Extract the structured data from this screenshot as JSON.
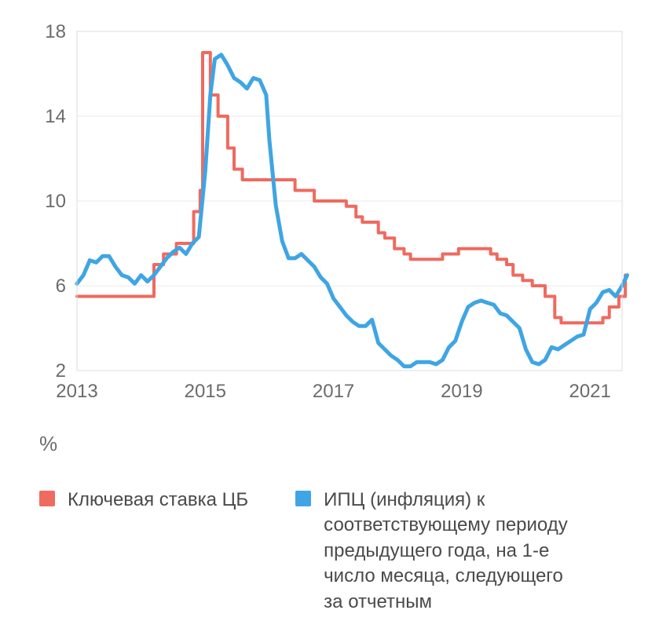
{
  "chart": {
    "type": "line",
    "background_color": "#ffffff",
    "plot_border_color": "#dcdcdc",
    "plot_border_width": 1,
    "grid_color": "#e9e9e9",
    "grid_width": 1,
    "axis_font_size": 24,
    "axis_font_color": "#6b6b6b",
    "xlim": [
      2013,
      2021.5
    ],
    "ylim": [
      2,
      18
    ],
    "yticks": [
      2,
      6,
      10,
      14,
      18
    ],
    "xticks": [
      2013,
      2015,
      2017,
      2019,
      2021
    ],
    "series": [
      {
        "id": "key_rate",
        "color": "#ef6a5f",
        "line_width": 4,
        "step": true,
        "points": [
          [
            2013.0,
            5.5
          ],
          [
            2013.7,
            5.5
          ],
          [
            2013.7,
            5.5
          ],
          [
            2014.2,
            5.5
          ],
          [
            2014.2,
            7.0
          ],
          [
            2014.35,
            7.0
          ],
          [
            2014.35,
            7.5
          ],
          [
            2014.55,
            7.5
          ],
          [
            2014.55,
            8.0
          ],
          [
            2014.82,
            8.0
          ],
          [
            2014.82,
            9.5
          ],
          [
            2014.92,
            9.5
          ],
          [
            2014.92,
            10.5
          ],
          [
            2014.96,
            10.5
          ],
          [
            2014.96,
            17.0
          ],
          [
            2015.08,
            17.0
          ],
          [
            2015.08,
            15.0
          ],
          [
            2015.2,
            15.0
          ],
          [
            2015.2,
            14.0
          ],
          [
            2015.35,
            14.0
          ],
          [
            2015.35,
            12.5
          ],
          [
            2015.45,
            12.5
          ],
          [
            2015.45,
            11.5
          ],
          [
            2015.58,
            11.5
          ],
          [
            2015.58,
            11.0
          ],
          [
            2016.4,
            11.0
          ],
          [
            2016.4,
            10.5
          ],
          [
            2016.7,
            10.5
          ],
          [
            2016.7,
            10.0
          ],
          [
            2017.2,
            10.0
          ],
          [
            2017.2,
            9.75
          ],
          [
            2017.35,
            9.75
          ],
          [
            2017.35,
            9.25
          ],
          [
            2017.45,
            9.25
          ],
          [
            2017.45,
            9.0
          ],
          [
            2017.7,
            9.0
          ],
          [
            2017.7,
            8.5
          ],
          [
            2017.8,
            8.5
          ],
          [
            2017.8,
            8.25
          ],
          [
            2017.95,
            8.25
          ],
          [
            2017.95,
            7.75
          ],
          [
            2018.1,
            7.75
          ],
          [
            2018.1,
            7.5
          ],
          [
            2018.2,
            7.5
          ],
          [
            2018.2,
            7.25
          ],
          [
            2018.7,
            7.25
          ],
          [
            2018.7,
            7.5
          ],
          [
            2018.95,
            7.5
          ],
          [
            2018.95,
            7.75
          ],
          [
            2019.45,
            7.75
          ],
          [
            2019.45,
            7.5
          ],
          [
            2019.55,
            7.5
          ],
          [
            2019.55,
            7.25
          ],
          [
            2019.7,
            7.25
          ],
          [
            2019.7,
            7.0
          ],
          [
            2019.8,
            7.0
          ],
          [
            2019.8,
            6.5
          ],
          [
            2019.95,
            6.5
          ],
          [
            2019.95,
            6.25
          ],
          [
            2020.1,
            6.25
          ],
          [
            2020.1,
            6.0
          ],
          [
            2020.3,
            6.0
          ],
          [
            2020.3,
            5.5
          ],
          [
            2020.45,
            5.5
          ],
          [
            2020.45,
            4.5
          ],
          [
            2020.55,
            4.5
          ],
          [
            2020.55,
            4.25
          ],
          [
            2021.2,
            4.25
          ],
          [
            2021.2,
            4.5
          ],
          [
            2021.3,
            4.5
          ],
          [
            2021.3,
            5.0
          ],
          [
            2021.45,
            5.0
          ],
          [
            2021.45,
            5.5
          ],
          [
            2021.55,
            5.5
          ],
          [
            2021.55,
            6.5
          ],
          [
            2021.58,
            6.5
          ]
        ]
      },
      {
        "id": "cpi",
        "color": "#3fa5e4",
        "line_width": 5,
        "step": false,
        "points": [
          [
            2013.0,
            6.1
          ],
          [
            2013.1,
            6.5
          ],
          [
            2013.2,
            7.2
          ],
          [
            2013.3,
            7.1
          ],
          [
            2013.4,
            7.4
          ],
          [
            2013.5,
            7.4
          ],
          [
            2013.6,
            6.9
          ],
          [
            2013.7,
            6.5
          ],
          [
            2013.8,
            6.4
          ],
          [
            2013.9,
            6.1
          ],
          [
            2014.0,
            6.5
          ],
          [
            2014.1,
            6.2
          ],
          [
            2014.2,
            6.5
          ],
          [
            2014.3,
            6.9
          ],
          [
            2014.4,
            7.3
          ],
          [
            2014.5,
            7.6
          ],
          [
            2014.6,
            7.8
          ],
          [
            2014.7,
            7.5
          ],
          [
            2014.8,
            8.0
          ],
          [
            2014.9,
            8.3
          ],
          [
            2015.0,
            11.4
          ],
          [
            2015.08,
            15.0
          ],
          [
            2015.15,
            16.7
          ],
          [
            2015.25,
            16.9
          ],
          [
            2015.35,
            16.4
          ],
          [
            2015.45,
            15.8
          ],
          [
            2015.55,
            15.6
          ],
          [
            2015.65,
            15.3
          ],
          [
            2015.75,
            15.8
          ],
          [
            2015.85,
            15.7
          ],
          [
            2015.95,
            15.0
          ],
          [
            2016.0,
            12.9
          ],
          [
            2016.1,
            9.8
          ],
          [
            2016.2,
            8.1
          ],
          [
            2016.3,
            7.3
          ],
          [
            2016.4,
            7.3
          ],
          [
            2016.5,
            7.5
          ],
          [
            2016.6,
            7.2
          ],
          [
            2016.7,
            6.9
          ],
          [
            2016.8,
            6.4
          ],
          [
            2016.9,
            6.1
          ],
          [
            2017.0,
            5.4
          ],
          [
            2017.1,
            5.0
          ],
          [
            2017.2,
            4.6
          ],
          [
            2017.3,
            4.3
          ],
          [
            2017.4,
            4.1
          ],
          [
            2017.5,
            4.1
          ],
          [
            2017.6,
            4.4
          ],
          [
            2017.7,
            3.3
          ],
          [
            2017.8,
            3.0
          ],
          [
            2017.9,
            2.7
          ],
          [
            2018.0,
            2.5
          ],
          [
            2018.1,
            2.2
          ],
          [
            2018.2,
            2.2
          ],
          [
            2018.3,
            2.4
          ],
          [
            2018.4,
            2.4
          ],
          [
            2018.5,
            2.4
          ],
          [
            2018.6,
            2.3
          ],
          [
            2018.7,
            2.5
          ],
          [
            2018.8,
            3.1
          ],
          [
            2018.9,
            3.4
          ],
          [
            2019.0,
            4.3
          ],
          [
            2019.1,
            5.0
          ],
          [
            2019.2,
            5.2
          ],
          [
            2019.3,
            5.3
          ],
          [
            2019.4,
            5.2
          ],
          [
            2019.5,
            5.1
          ],
          [
            2019.6,
            4.7
          ],
          [
            2019.7,
            4.6
          ],
          [
            2019.8,
            4.3
          ],
          [
            2019.9,
            4.0
          ],
          [
            2020.0,
            3.0
          ],
          [
            2020.1,
            2.4
          ],
          [
            2020.2,
            2.3
          ],
          [
            2020.3,
            2.5
          ],
          [
            2020.4,
            3.1
          ],
          [
            2020.5,
            3.0
          ],
          [
            2020.6,
            3.2
          ],
          [
            2020.7,
            3.4
          ],
          [
            2020.8,
            3.6
          ],
          [
            2020.9,
            3.7
          ],
          [
            2021.0,
            4.9
          ],
          [
            2021.1,
            5.2
          ],
          [
            2021.2,
            5.7
          ],
          [
            2021.3,
            5.8
          ],
          [
            2021.4,
            5.5
          ],
          [
            2021.5,
            6.0
          ],
          [
            2021.58,
            6.5
          ]
        ]
      }
    ]
  },
  "unit_label": "%",
  "legend": {
    "items": [
      {
        "id": "key_rate",
        "swatch_color": "#ef6a5f",
        "label": "Ключевая ставка ЦБ"
      },
      {
        "id": "cpi",
        "swatch_color": "#3fa5e4",
        "label": "ИПЦ (инфляция) к соответствующему периоду предыдущего года, на 1-е число месяца, следующего за отчетным"
      }
    ]
  }
}
